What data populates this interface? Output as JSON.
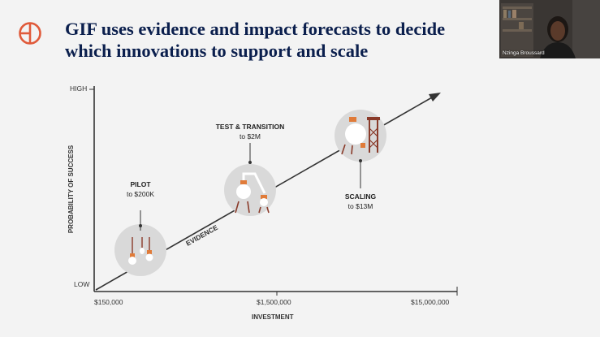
{
  "slide": {
    "title_line1": "GIF uses evidence and impact forecasts to decide",
    "title_line2": "which innovations to support and scale"
  },
  "chart_data": {
    "type": "diagram",
    "y_axis": {
      "label": "PROBABILITY OF SUCCESS",
      "high": "HIGH",
      "low": "LOW"
    },
    "x_axis": {
      "label": "INVESTMENT",
      "ticks": [
        "$150,000",
        "$1,500,000",
        "$15,000,000"
      ]
    },
    "arrow_label": "EVIDENCE",
    "stages": [
      {
        "name": "PILOT",
        "amount": "to $200K"
      },
      {
        "name": "TEST & TRANSITION",
        "amount": "to $2M"
      },
      {
        "name": "SCALING",
        "amount": "to $13M"
      }
    ]
  },
  "webcam": {
    "participant_name": "Nzinga Broussard"
  },
  "colors": {
    "title": "#0b1f4d",
    "logo": "#e05a3a",
    "accent_orange": "#e07b39",
    "accent_brown": "#8a3b2a",
    "circle": "#d9d9d9"
  }
}
